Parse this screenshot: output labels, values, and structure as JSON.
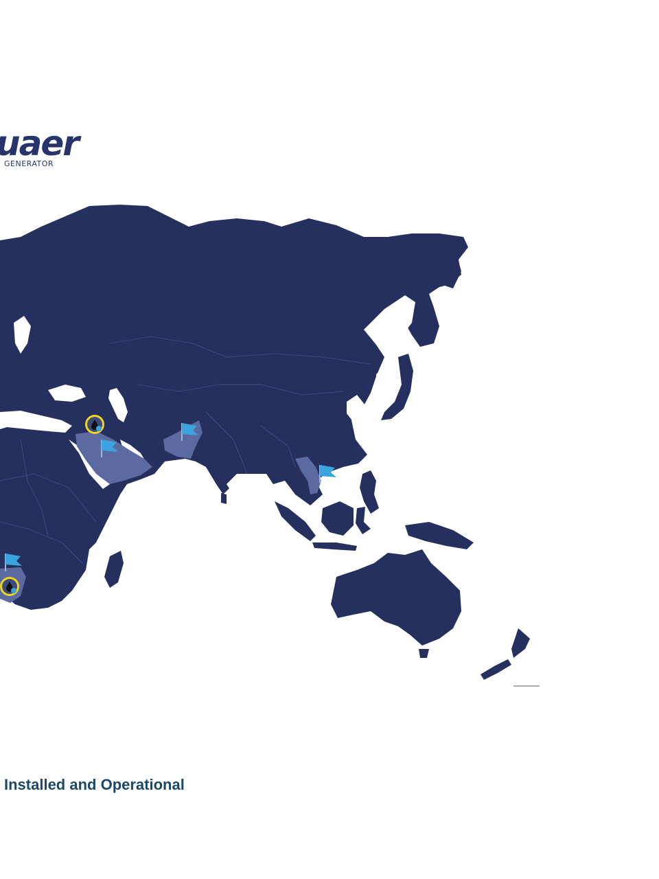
{
  "logo": {
    "word": "uaer",
    "sub": "GENERATOR"
  },
  "map": {
    "land_color": "#26305f",
    "highlight_color": "#5b6aa0",
    "border_color": "#3d4a80",
    "flag_color": "#3ba3dd",
    "oil_marker_color": "#f2d51d",
    "highlighted_regions": [
      "saudi-arabia",
      "pakistan",
      "vietnam",
      "namibia"
    ],
    "markers": [
      {
        "type": "oil-drop",
        "region": "iraq"
      },
      {
        "type": "flag",
        "region": "saudi-arabia"
      },
      {
        "type": "flag",
        "region": "pakistan"
      },
      {
        "type": "flag",
        "region": "vietnam"
      },
      {
        "type": "flag",
        "region": "namibia"
      },
      {
        "type": "oil-drop",
        "region": "namibia"
      }
    ]
  },
  "legend": {
    "text": "Installed and Operational"
  }
}
